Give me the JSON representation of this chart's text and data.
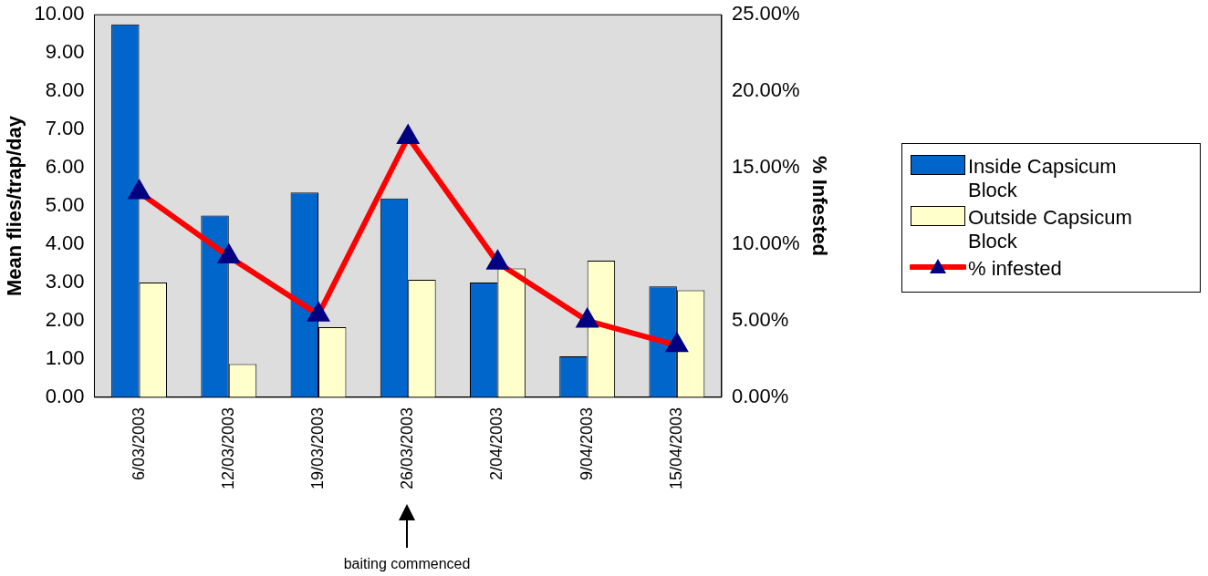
{
  "chart_data": {
    "type": "bar",
    "ylabel": "Mean flies/trap/day",
    "y2label": "% Infested",
    "categories": [
      "6/03/2003",
      "12/03/2003",
      "19/03/2003",
      "26/03/2003",
      "2/04/2003",
      "9/04/2003",
      "15/04/2003"
    ],
    "series": [
      {
        "name": "Inside Capsicum Block",
        "color": "#0066cc",
        "values": [
          9.75,
          4.75,
          5.35,
          5.2,
          3.0,
          1.07,
          2.9
        ]
      },
      {
        "name": "Outside Capsicum Block",
        "color": "#ffffcc",
        "values": [
          3.0,
          0.87,
          1.83,
          3.07,
          3.37,
          3.57,
          2.8
        ]
      },
      {
        "name": "% infested",
        "type": "line",
        "axis": "y2",
        "color": "#ff0000",
        "marker": "triangle",
        "values": [
          13.4,
          9.2,
          5.4,
          17.0,
          8.8,
          5.0,
          3.4
        ]
      }
    ],
    "ylim": [
      0,
      10
    ],
    "yticks": [
      {
        "value": 0,
        "label": "0.00"
      },
      {
        "value": 1,
        "label": "1.00"
      },
      {
        "value": 2,
        "label": "2.00"
      },
      {
        "value": 3,
        "label": "3.00"
      },
      {
        "value": 4,
        "label": "4.00"
      },
      {
        "value": 5,
        "label": "5.00"
      },
      {
        "value": 6,
        "label": "6.00"
      },
      {
        "value": 7,
        "label": "7.00"
      },
      {
        "value": 8,
        "label": "8.00"
      },
      {
        "value": 9,
        "label": "9.00"
      },
      {
        "value": 10,
        "label": "10.00"
      }
    ],
    "y2lim": [
      0,
      25
    ],
    "y2ticks": [
      {
        "value": 0,
        "label": "0.00%"
      },
      {
        "value": 5,
        "label": "5.00%"
      },
      {
        "value": 10,
        "label": "10.00%"
      },
      {
        "value": 15,
        "label": "15.00%"
      },
      {
        "value": 20,
        "label": "20.00%"
      },
      {
        "value": 25,
        "label": "25.00%"
      }
    ],
    "annotations": [
      "baiting commenced"
    ],
    "grid": false,
    "legend": "right"
  }
}
